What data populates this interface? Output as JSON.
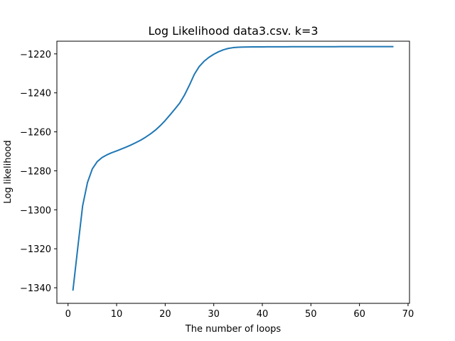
{
  "chart_data": {
    "type": "line",
    "title": "Log Likelihood data3.csv. k=3",
    "xlabel": "The number of loops",
    "ylabel": "Log likelihood",
    "xlim": [
      -2.3,
      70.3
    ],
    "ylim": [
      -1348,
      -1213.5
    ],
    "xticks": [
      0,
      10,
      20,
      30,
      40,
      50,
      60,
      70
    ],
    "yticks": [
      -1340,
      -1320,
      -1300,
      -1280,
      -1260,
      -1240,
      -1220
    ],
    "xtick_labels": [
      "0",
      "10",
      "20",
      "30",
      "40",
      "50",
      "60",
      "70"
    ],
    "ytick_labels": [
      "−1340",
      "−1320",
      "−1300",
      "−1280",
      "−1260",
      "−1240",
      "−1220"
    ],
    "grid": false,
    "legend": "none",
    "series": [
      {
        "color": "#1f77b4",
        "x": [
          1,
          2,
          3,
          4,
          5,
          6,
          7,
          8,
          9,
          10,
          11,
          12,
          13,
          14,
          15,
          16,
          17,
          18,
          19,
          20,
          21,
          22,
          23,
          24,
          25,
          26,
          27,
          28,
          29,
          30,
          31,
          32,
          33,
          34,
          35,
          36,
          37,
          38,
          39,
          40,
          41,
          42,
          43,
          44,
          45,
          46,
          47,
          48,
          49,
          50,
          51,
          52,
          53,
          54,
          55,
          56,
          57,
          58,
          59,
          60,
          61,
          62,
          63,
          64,
          65,
          66,
          67
        ],
        "y": [
          -1341.5,
          -1319.5,
          -1298.0,
          -1286.0,
          -1279.0,
          -1275.3,
          -1273.2,
          -1271.8,
          -1270.7,
          -1269.8,
          -1268.8,
          -1267.8,
          -1266.7,
          -1265.5,
          -1264.2,
          -1262.7,
          -1261.0,
          -1259.1,
          -1256.8,
          -1254.2,
          -1251.3,
          -1248.3,
          -1245.2,
          -1241.0,
          -1236.0,
          -1230.5,
          -1226.5,
          -1223.8,
          -1221.8,
          -1220.2,
          -1218.9,
          -1217.9,
          -1217.2,
          -1216.8,
          -1216.6,
          -1216.5,
          -1216.45,
          -1216.42,
          -1216.4,
          -1216.4,
          -1216.38,
          -1216.37,
          -1216.36,
          -1216.35,
          -1216.35,
          -1216.34,
          -1216.34,
          -1216.33,
          -1216.33,
          -1216.32,
          -1216.32,
          -1216.32,
          -1216.31,
          -1216.31,
          -1216.31,
          -1216.3,
          -1216.3,
          -1216.3,
          -1216.3,
          -1216.3,
          -1216.3,
          -1216.3,
          -1216.3,
          -1216.3,
          -1216.3,
          -1216.3,
          -1216.3
        ]
      }
    ]
  }
}
